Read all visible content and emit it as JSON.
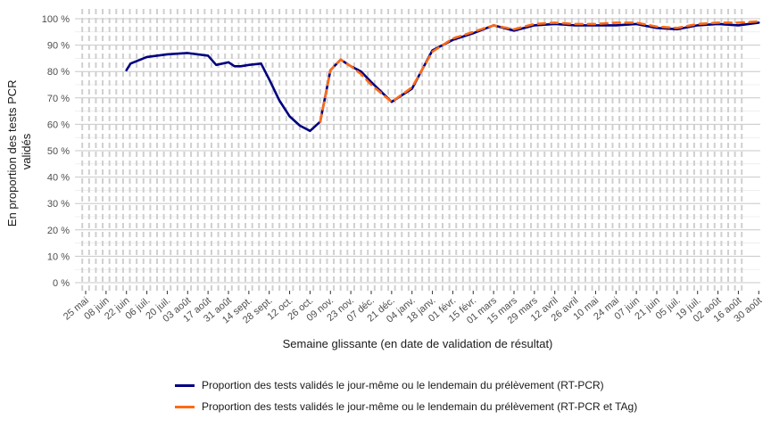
{
  "chart_data": {
    "type": "line",
    "xlabel": "Semaine glissante (en date de validation de résultat)",
    "ylabel": "En proportion des tests PCR validés",
    "ylim": [
      0,
      100
    ],
    "y_ticks": [
      "0 %",
      "10 %",
      "20 %",
      "30 %",
      "40 %",
      "50 %",
      "60 %",
      "70 %",
      "80 %",
      "90 %",
      "100 %"
    ],
    "x_ticks": [
      "25 mai",
      "08 juin",
      "22 juin",
      "06 juil.",
      "20 juil.",
      "03 août",
      "17 août",
      "31 août",
      "14 sept.",
      "28 sept.",
      "12 oct.",
      "26 oct.",
      "09 nov.",
      "23 nov.",
      "07 déc.",
      "21 déc.",
      "04 janv.",
      "18 janv.",
      "01 févr.",
      "15 févr.",
      "01 mars",
      "15 mars",
      "29 mars",
      "12 avril",
      "26 avril",
      "10 mai",
      "24 mai",
      "07 juin",
      "21 juin",
      "05 juil.",
      "19 juil.",
      "02 août",
      "16 août",
      "30 août"
    ],
    "grid": true,
    "legend_position": "bottom",
    "series": [
      {
        "name": "Proportion des tests validés le jour-même ou le lendemain du prélèvement (RT-PCR)",
        "color": "#000080",
        "style": "solid",
        "x": [
          2,
          2.2,
          3,
          4,
          5,
          6,
          6.4,
          7,
          7.3,
          7.6,
          8,
          8.6,
          9,
          9.5,
          10,
          10.5,
          11,
          11.5,
          12,
          12.5,
          13,
          13.5,
          14,
          15,
          16,
          17,
          18,
          19,
          20,
          21,
          22,
          23,
          24,
          25,
          26,
          27,
          28,
          29,
          30,
          31,
          32,
          33
        ],
        "y": [
          80.5,
          83,
          85.5,
          86.5,
          87,
          86,
          82.5,
          83.5,
          82,
          82,
          82.5,
          83,
          77,
          69,
          63,
          59.5,
          57.5,
          61,
          80.5,
          84.5,
          82,
          80,
          76,
          68.5,
          73.5,
          88,
          92,
          94.5,
          97.5,
          95.5,
          97.5,
          98,
          97.5,
          97.5,
          97.5,
          98,
          96.5,
          96,
          97.5,
          98,
          97.5,
          98.5
        ]
      },
      {
        "name": "Proportion des tests validés le jour-même ou le lendemain du prélèvement (RT-PCR et TAg)",
        "color": "#FF6A13",
        "style": "dashed",
        "x": [
          11.5,
          12,
          12.5,
          13,
          13.5,
          14,
          15,
          16,
          17,
          18,
          19,
          20,
          21,
          22,
          23,
          24,
          25,
          26,
          27,
          28,
          29,
          30,
          31,
          32,
          33
        ],
        "y": [
          61,
          80.5,
          84.5,
          82,
          79,
          75,
          68.5,
          74,
          87.5,
          92.5,
          95,
          97.5,
          96,
          98,
          98.5,
          98,
          98,
          98.5,
          98.5,
          97,
          96.5,
          98,
          98.5,
          98.5,
          99
        ]
      }
    ]
  },
  "legend": [
    {
      "label": "Proportion des tests validés le jour-même ou le lendemain du prélèvement (RT-PCR)",
      "color": "#000080"
    },
    {
      "label": "Proportion des tests validés le jour-même ou le lendemain du prélèvement (RT-PCR et TAg)",
      "color": "#FF6A13"
    }
  ]
}
